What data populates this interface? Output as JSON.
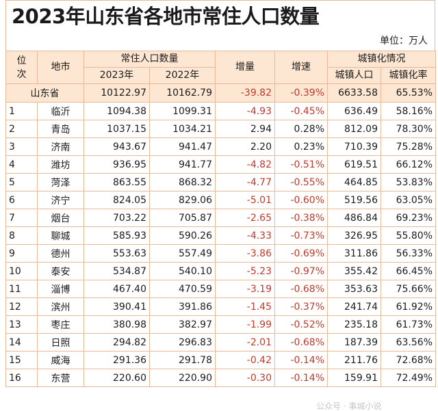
{
  "title": "2023年山东省各地市常住人口数量",
  "unit": "单位：万人",
  "header": {
    "rank": "位次",
    "city": "地市",
    "population_group": "常住人口数量",
    "year_2023": "2023年",
    "year_2022": "2022年",
    "increase": "增量",
    "growth_rate": "增速",
    "urbanization_group": "城镇化情况",
    "urban_population": "城镇人口",
    "urbanization_rate": "城镇化率"
  },
  "province": {
    "name": "山东省",
    "pop_2023": "10122.97",
    "pop_2022": "10162.79",
    "increase": "-39.82",
    "growth": "-0.39%",
    "urban_pop": "6633.58",
    "urban_rate": "65.53%"
  },
  "rows": [
    {
      "rank": "1",
      "city": "临沂",
      "pop_2023": "1094.38",
      "pop_2022": "1099.31",
      "increase": "-4.93",
      "growth": "-0.45%",
      "urban_pop": "636.49",
      "urban_rate": "58.16%"
    },
    {
      "rank": "2",
      "city": "青岛",
      "pop_2023": "1037.15",
      "pop_2022": "1034.21",
      "increase": "2.94",
      "growth": "0.28%",
      "urban_pop": "812.09",
      "urban_rate": "78.30%"
    },
    {
      "rank": "3",
      "city": "济南",
      "pop_2023": "943.67",
      "pop_2022": "941.47",
      "increase": "2.20",
      "growth": "0.23%",
      "urban_pop": "710.39",
      "urban_rate": "75.28%"
    },
    {
      "rank": "4",
      "city": "潍坊",
      "pop_2023": "936.95",
      "pop_2022": "941.77",
      "increase": "-4.82",
      "growth": "-0.51%",
      "urban_pop": "619.51",
      "urban_rate": "66.12%"
    },
    {
      "rank": "5",
      "city": "菏泽",
      "pop_2023": "863.55",
      "pop_2022": "868.32",
      "increase": "-4.77",
      "growth": "-0.55%",
      "urban_pop": "464.85",
      "urban_rate": "53.83%"
    },
    {
      "rank": "6",
      "city": "济宁",
      "pop_2023": "824.05",
      "pop_2022": "829.06",
      "increase": "-5.01",
      "growth": "-0.60%",
      "urban_pop": "519.56",
      "urban_rate": "63.05%"
    },
    {
      "rank": "7",
      "city": "烟台",
      "pop_2023": "703.22",
      "pop_2022": "705.87",
      "increase": "-2.65",
      "growth": "-0.38%",
      "urban_pop": "486.84",
      "urban_rate": "69.23%"
    },
    {
      "rank": "8",
      "city": "聊城",
      "pop_2023": "585.93",
      "pop_2022": "590.26",
      "increase": "-4.33",
      "growth": "-0.73%",
      "urban_pop": "326.95",
      "urban_rate": "55.80%"
    },
    {
      "rank": "9",
      "city": "德州",
      "pop_2023": "553.63",
      "pop_2022": "557.49",
      "increase": "-3.86",
      "growth": "-0.69%",
      "urban_pop": "311.86",
      "urban_rate": "56.33%"
    },
    {
      "rank": "10",
      "city": "泰安",
      "pop_2023": "534.87",
      "pop_2022": "540.10",
      "increase": "-5.23",
      "growth": "-0.97%",
      "urban_pop": "355.42",
      "urban_rate": "66.45%"
    },
    {
      "rank": "11",
      "city": "淄博",
      "pop_2023": "467.40",
      "pop_2022": "470.59",
      "increase": "-3.19",
      "growth": "-0.68%",
      "urban_pop": "353.63",
      "urban_rate": "75.66%"
    },
    {
      "rank": "12",
      "city": "滨州",
      "pop_2023": "390.41",
      "pop_2022": "391.86",
      "increase": "-1.45",
      "growth": "-0.37%",
      "urban_pop": "241.74",
      "urban_rate": "61.92%"
    },
    {
      "rank": "13",
      "city": "枣庄",
      "pop_2023": "380.98",
      "pop_2022": "382.97",
      "increase": "-1.99",
      "growth": "-0.52%",
      "urban_pop": "235.18",
      "urban_rate": "61.73%"
    },
    {
      "rank": "14",
      "city": "日照",
      "pop_2023": "294.82",
      "pop_2022": "296.83",
      "increase": "-2.01",
      "growth": "-0.68%",
      "urban_pop": "187.39",
      "urban_rate": "63.56%"
    },
    {
      "rank": "15",
      "city": "威海",
      "pop_2023": "291.36",
      "pop_2022": "291.78",
      "increase": "-0.42",
      "growth": "-0.14%",
      "urban_pop": "211.76",
      "urban_rate": "72.68%"
    },
    {
      "rank": "16",
      "city": "东营",
      "pop_2023": "220.60",
      "pop_2022": "220.90",
      "increase": "-0.30",
      "growth": "-0.14%",
      "urban_pop": "159.91",
      "urban_rate": "72.49%"
    }
  ],
  "watermark": "公众号 · 事城小说",
  "colors": {
    "header_bg": "#fde6d2",
    "border": "#e8b89a",
    "negative": "#c0392b"
  }
}
